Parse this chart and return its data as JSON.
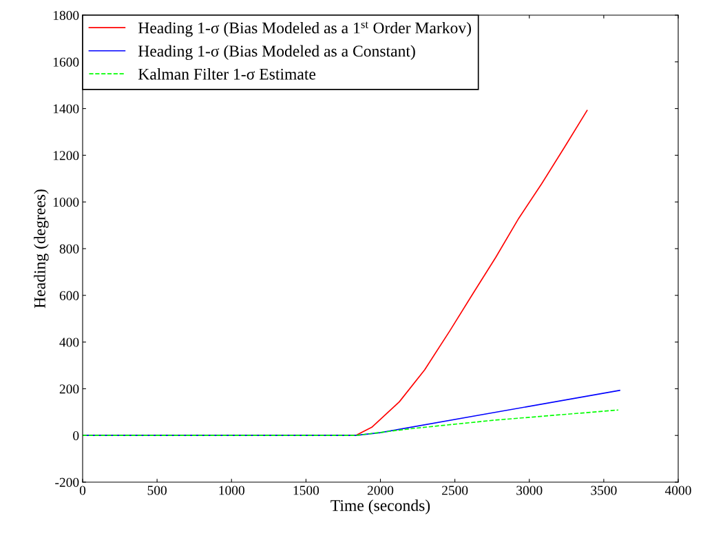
{
  "chart_data": {
    "type": "line",
    "xlabel": "Time (seconds)",
    "ylabel": "Heading (degrees)",
    "xlim": [
      0,
      4000
    ],
    "xticks": [
      0,
      500,
      1000,
      1500,
      2000,
      2500,
      3000,
      3500,
      4000
    ],
    "ylim": [
      -200,
      1800
    ],
    "yticks": [
      -200,
      0,
      200,
      400,
      600,
      800,
      1000,
      1200,
      1400,
      1600,
      1800
    ],
    "grid": false,
    "legend": "top left",
    "series": [
      {
        "name": "Heading 1-σ (Bias Modeled as a 1$^{st}$ Order Markov)",
        "color": "#ff0000",
        "line_style": "solid",
        "x": [
          0,
          1834,
          1942,
          2127,
          2297,
          2466,
          2620,
          2775,
          2929,
          3083,
          3237,
          3388
        ],
        "values": [
          0,
          0,
          35,
          144,
          281,
          448,
          606,
          763,
          930,
          1078,
          1235,
          1392
        ]
      },
      {
        "name": "Heading 1-σ (Bias Modeled as a Constant)",
        "color": "#0000ff",
        "line_style": "solid",
        "x": [
          0,
          1834,
          2000,
          2682,
          3607
        ],
        "values": [
          0,
          0,
          12,
          89,
          193
        ]
      },
      {
        "name": "Kalman Filter 1-σ Estimate",
        "color": "#00ff00",
        "line_style": "dashed",
        "x": [
          0,
          1834,
          2220,
          2759,
          3598
        ],
        "values": [
          0,
          0,
          30,
          65,
          109
        ]
      }
    ]
  }
}
